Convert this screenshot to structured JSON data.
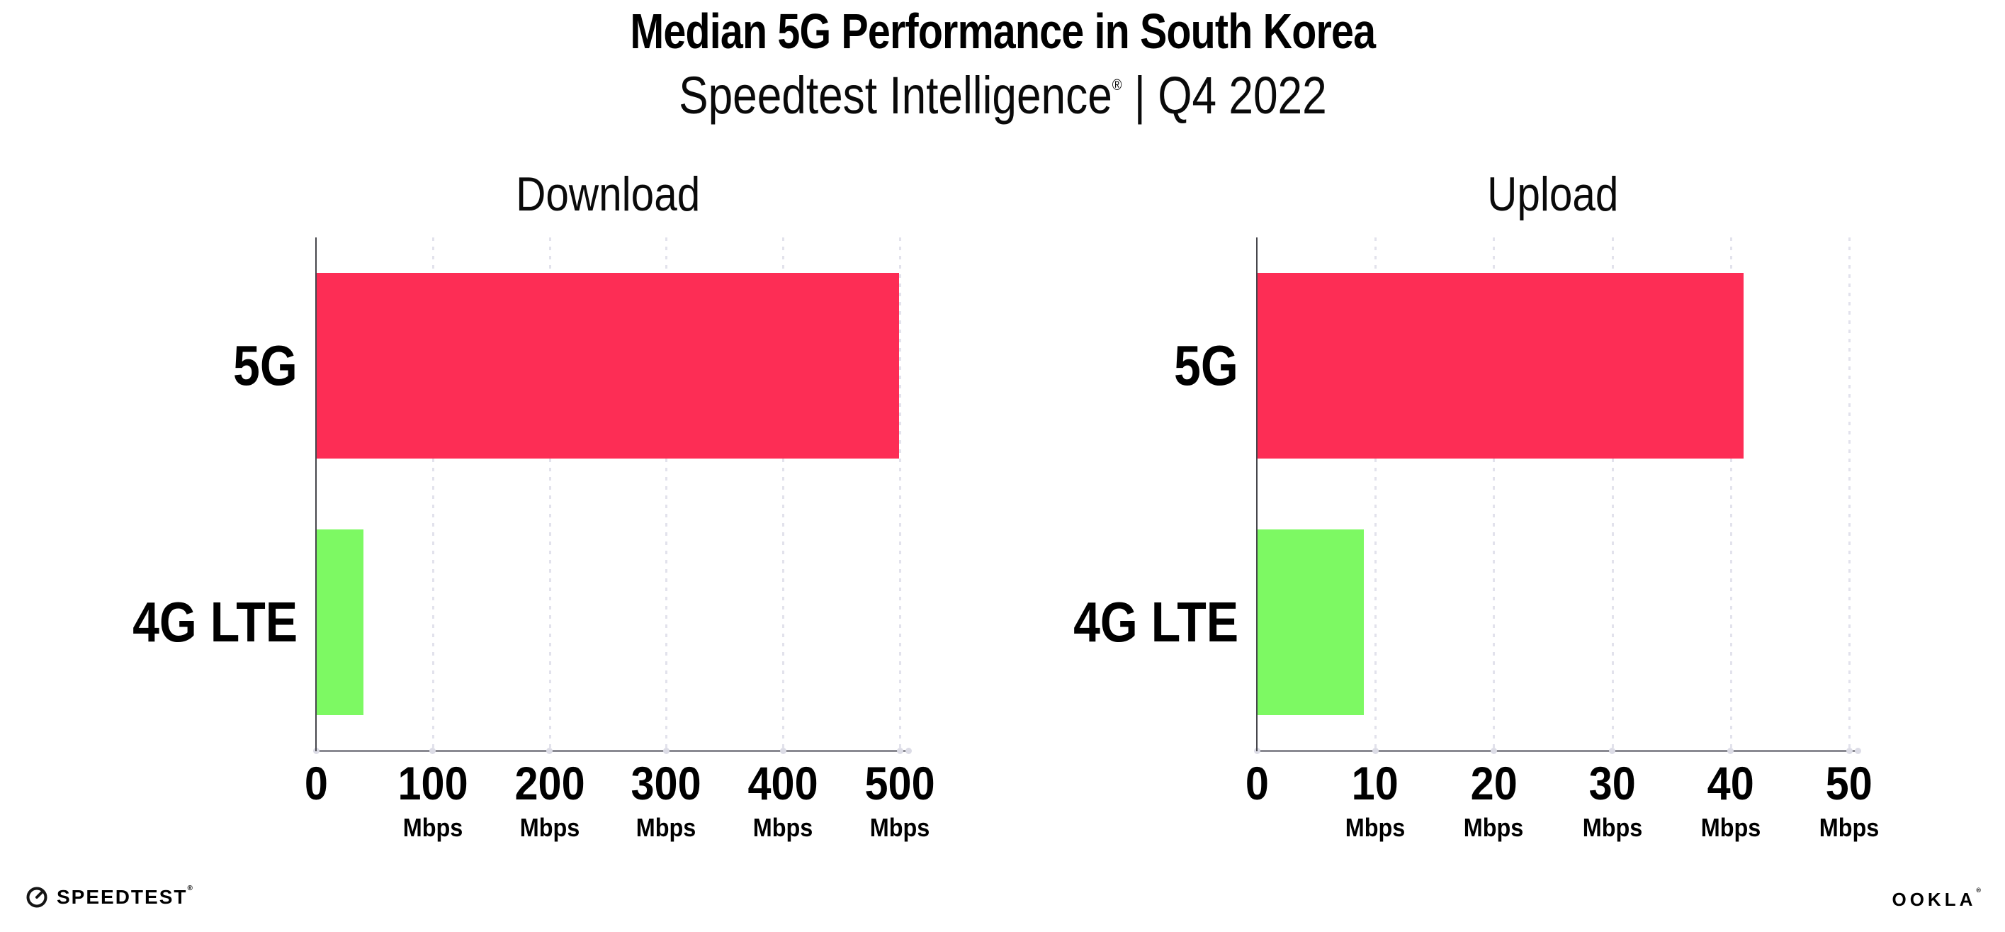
{
  "page": {
    "background": "#FFFFFF"
  },
  "header": {
    "title": "Median 5G Performance in South Korea",
    "subtitle": {
      "brand": "Speedtest Intelligence",
      "registered_mark": "®",
      "separator": " | ",
      "period": "Q4 2022"
    }
  },
  "chart_data": [
    {
      "type": "bar",
      "orientation": "horizontal",
      "title": "Download",
      "categories": [
        "5G",
        "4G LTE"
      ],
      "values": [
        499,
        40
      ],
      "unit": "Mbps",
      "xlim": [
        0,
        500
      ],
      "xticks": [
        0,
        100,
        200,
        300,
        400,
        500
      ],
      "xtick_unit": "Mbps",
      "grid": "dotted-vertical",
      "legend": "none",
      "bar_colors": [
        "#FD2D55",
        "#7DF963"
      ]
    },
    {
      "type": "bar",
      "orientation": "horizontal",
      "title": "Upload",
      "categories": [
        "5G",
        "4G LTE"
      ],
      "values": [
        41,
        9
      ],
      "unit": "Mbps",
      "xlim": [
        0,
        50
      ],
      "xticks": [
        0,
        10,
        20,
        30,
        40,
        50
      ],
      "xtick_unit": "Mbps",
      "grid": "dotted-vertical",
      "legend": "none",
      "bar_colors": [
        "#FD2D55",
        "#7DF963"
      ]
    }
  ],
  "colors": {
    "bar_5g": "#FD2D55",
    "bar_4g_lte": "#7DF963",
    "gridline": "#E2E2EC",
    "axis_line": "#8A8A92",
    "y_axis_line": "#46464C",
    "tick_dot": "#DCDCE6",
    "text": "#000000"
  },
  "footer": {
    "speedtest_logo_text": "SPEEDTEST",
    "speedtest_registered_mark": "®",
    "ookla_logo_text": "OOKLA",
    "ookla_registered_mark": "®"
  }
}
